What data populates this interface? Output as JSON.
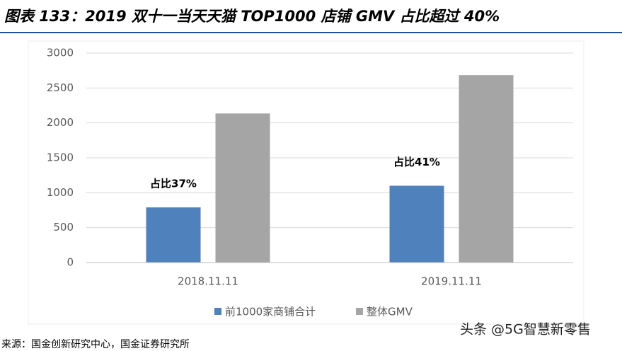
{
  "chart_data": {
    "type": "bar",
    "title": "图表 133：2019 双十一当天天猫 TOP1000 店铺 GMV 占比超过 40%",
    "categories": [
      "2018.11.11",
      "2019.11.11"
    ],
    "series": [
      {
        "name": "前1000家商铺合计",
        "color": "#4f81bd",
        "values": [
          790,
          1100
        ]
      },
      {
        "name": "整体GMV",
        "color": "#a5a5a5",
        "values": [
          2135,
          2684
        ]
      }
    ],
    "annotations": [
      "占比37%",
      "占比41%"
    ],
    "ylim": [
      0,
      3000
    ],
    "yticks": [
      0,
      500,
      1000,
      1500,
      2000,
      2500,
      3000
    ],
    "grid": true,
    "legend": "bottom",
    "source": "来源：国金创新研究中心，国金证券研究所",
    "watermark": "头条 @5G智慧新零售"
  }
}
